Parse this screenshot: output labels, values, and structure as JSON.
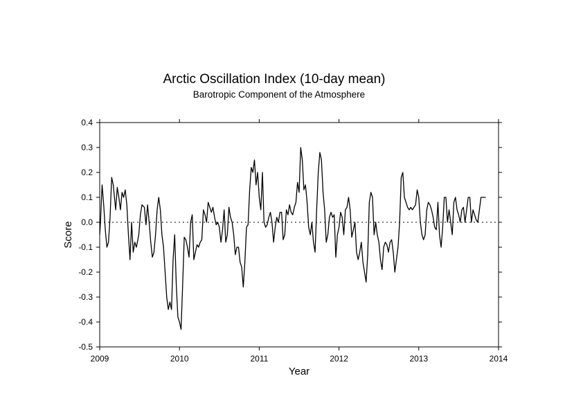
{
  "chart_data": {
    "type": "line",
    "title": "Arctic Oscillation Index (10-day mean)",
    "subtitle": "Barotropic Component of the Atmosphere",
    "xlabel": "Year",
    "ylabel": "Score",
    "xlim": [
      2009,
      2014
    ],
    "ylim": [
      -0.5,
      0.4
    ],
    "x_ticks": [
      2009,
      2010,
      2011,
      2012,
      2013,
      2014
    ],
    "x_tick_labels": [
      "2009",
      "2010",
      "2011",
      "2012",
      "2013",
      "2014"
    ],
    "y_ticks": [
      -0.5,
      -0.4,
      -0.3,
      -0.2,
      -0.1,
      0.0,
      0.1,
      0.2,
      0.3,
      0.4
    ],
    "y_tick_labels": [
      "-0.5",
      "-0.4",
      "-0.3",
      "-0.2",
      "-0.1",
      "0.0",
      "0.1",
      "0.2",
      "0.3",
      "0.4"
    ],
    "zero_line": "dotted",
    "grid": false,
    "line_color": "#000000",
    "series": [
      {
        "x": [
          2009.0,
          2009.01,
          2009.02,
          2009.03,
          2009.05,
          2009.07,
          2009.09,
          2009.11,
          2009.13,
          2009.15,
          2009.17,
          2009.2,
          2009.22,
          2009.24,
          2009.26,
          2009.28,
          2009.3,
          2009.32,
          2009.34,
          2009.36,
          2009.38,
          2009.4,
          2009.42,
          2009.44,
          2009.46,
          2009.49,
          2009.51,
          2009.53,
          2009.56,
          2009.58,
          2009.6,
          2009.62,
          2009.64,
          2009.66,
          2009.68,
          2009.7,
          2009.72,
          2009.74,
          2009.76,
          2009.78,
          2009.8,
          2009.82,
          2009.84,
          2009.86,
          2009.88,
          2009.9,
          2009.92,
          2009.94,
          2009.96,
          2009.98,
          2010.0,
          2010.02,
          2010.04,
          2010.06,
          2010.08,
          2010.1,
          2010.12,
          2010.14,
          2010.16,
          2010.18,
          2010.2,
          2010.22,
          2010.24,
          2010.26,
          2010.28,
          2010.3,
          2010.32,
          2010.34,
          2010.36,
          2010.38,
          2010.4,
          2010.42,
          2010.44,
          2010.46,
          2010.48,
          2010.5,
          2010.52,
          2010.54,
          2010.56,
          2010.58,
          2010.6,
          2010.62,
          2010.64,
          2010.66,
          2010.68,
          2010.7,
          2010.72,
          2010.74,
          2010.76,
          2010.78,
          2010.8,
          2010.82,
          2010.84,
          2010.86,
          2010.88,
          2010.9,
          2010.92,
          2010.94,
          2010.96,
          2010.98,
          2011.0,
          2011.02,
          2011.04,
          2011.06,
          2011.08,
          2011.1,
          2011.12,
          2011.14,
          2011.16,
          2011.18,
          2011.2,
          2011.22,
          2011.24,
          2011.26,
          2011.28,
          2011.3,
          2011.32,
          2011.34,
          2011.36,
          2011.38,
          2011.4,
          2011.42,
          2011.44,
          2011.46,
          2011.48,
          2011.5,
          2011.52,
          2011.54,
          2011.56,
          2011.58,
          2011.6,
          2011.62,
          2011.64,
          2011.66,
          2011.68,
          2011.7,
          2011.72,
          2011.74,
          2011.76,
          2011.78,
          2011.8,
          2011.82,
          2011.84,
          2011.86,
          2011.88,
          2011.9,
          2011.92,
          2011.94,
          2011.96,
          2011.98,
          2012.0,
          2012.02,
          2012.04,
          2012.06,
          2012.08,
          2012.1,
          2012.12,
          2012.14,
          2012.16,
          2012.18,
          2012.2,
          2012.22,
          2012.24,
          2012.26,
          2012.28,
          2012.3,
          2012.32,
          2012.34,
          2012.36,
          2012.38,
          2012.4,
          2012.42,
          2012.44,
          2012.46,
          2012.48,
          2012.5,
          2012.52,
          2012.54,
          2012.56,
          2012.58,
          2012.6,
          2012.62,
          2012.64,
          2012.66,
          2012.68,
          2012.7,
          2012.72,
          2012.74,
          2012.76,
          2012.78,
          2012.8,
          2012.82,
          2012.84,
          2012.86,
          2012.88,
          2012.9,
          2012.92,
          2012.94,
          2012.96,
          2012.98,
          2013.0,
          2013.02,
          2013.04,
          2013.06,
          2013.08,
          2013.1,
          2013.12,
          2013.14,
          2013.16,
          2013.18,
          2013.2,
          2013.22,
          2013.24,
          2013.26,
          2013.28,
          2013.3,
          2013.32,
          2013.34,
          2013.36,
          2013.38,
          2013.4,
          2013.42,
          2013.44,
          2013.46,
          2013.48,
          2013.5,
          2013.52,
          2013.54,
          2013.56,
          2013.58,
          2013.6,
          2013.62,
          2013.64,
          2013.66,
          2013.68,
          2013.7,
          2013.72,
          2013.74,
          2013.76,
          2013.78,
          2013.8,
          2013.82,
          2013.84
        ],
        "values": [
          -0.05,
          0.0,
          0.08,
          0.15,
          0.07,
          -0.03,
          -0.1,
          -0.08,
          0.02,
          0.18,
          0.15,
          0.05,
          0.14,
          0.1,
          0.05,
          0.12,
          0.1,
          0.13,
          0.07,
          -0.05,
          -0.15,
          0.0,
          -0.12,
          -0.08,
          -0.1,
          -0.05,
          0.03,
          0.07,
          0.06,
          -0.01,
          0.07,
          0.0,
          -0.08,
          -0.14,
          -0.12,
          -0.05,
          0.05,
          0.1,
          0.05,
          -0.05,
          -0.1,
          -0.2,
          -0.3,
          -0.35,
          -0.32,
          -0.35,
          -0.15,
          -0.05,
          -0.25,
          -0.38,
          -0.4,
          -0.43,
          -0.25,
          -0.06,
          -0.07,
          -0.1,
          -0.14,
          0.0,
          0.03,
          -0.15,
          -0.12,
          -0.09,
          -0.1,
          -0.08,
          -0.07,
          0.05,
          0.03,
          0.0,
          0.08,
          0.06,
          0.04,
          0.06,
          0.02,
          -0.01,
          0.0,
          -0.02,
          -0.08,
          -0.03,
          0.05,
          -0.08,
          -0.05,
          0.06,
          0.02,
          0.0,
          -0.05,
          -0.13,
          -0.1,
          -0.1,
          -0.16,
          -0.18,
          -0.26,
          -0.16,
          -0.02,
          -0.01,
          0.13,
          0.22,
          0.2,
          0.25,
          0.15,
          0.2,
          0.1,
          0.05,
          0.2,
          0.0,
          -0.02,
          -0.01,
          0.02,
          0.04,
          0.0,
          -0.08,
          -0.02,
          0.02,
          0.0,
          0.04,
          0.04,
          -0.07,
          -0.05,
          0.05,
          0.03,
          0.07,
          0.04,
          0.03,
          0.06,
          0.08,
          0.16,
          0.12,
          0.3,
          0.25,
          0.13,
          0.15,
          0.08,
          -0.02,
          -0.05,
          0.0,
          -0.08,
          -0.12,
          0.05,
          0.2,
          0.28,
          0.25,
          0.12,
          0.05,
          -0.08,
          -0.05,
          0.02,
          0.04,
          0.02,
          0.03,
          -0.14,
          -0.05,
          -0.02,
          0.04,
          0.02,
          -0.05,
          0.05,
          0.06,
          0.1,
          0.05,
          -0.06,
          -0.03,
          0.0,
          -0.12,
          -0.15,
          -0.12,
          -0.08,
          -0.16,
          -0.2,
          -0.24,
          -0.13,
          0.08,
          0.12,
          0.1,
          -0.05,
          0.0,
          -0.05,
          -0.08,
          -0.15,
          -0.19,
          -0.1,
          -0.08,
          -0.09,
          -0.12,
          -0.08,
          -0.07,
          -0.12,
          -0.2,
          -0.15,
          -0.1,
          0.0,
          0.18,
          0.2,
          0.1,
          0.08,
          0.06,
          0.05,
          0.06,
          0.05,
          0.06,
          0.07,
          0.13,
          0.1,
          0.0,
          -0.05,
          -0.07,
          -0.05,
          0.05,
          0.08,
          0.07,
          0.05,
          0.02,
          -0.02,
          -0.03,
          0.08,
          -0.05,
          -0.1,
          -0.02,
          0.1,
          0.1,
          0.0,
          0.05,
          0.0,
          -0.05,
          0.08,
          0.1,
          0.05,
          0.03,
          0.0,
          0.05,
          0.06,
          0.0,
          0.05,
          0.1,
          0.1,
          0.0,
          0.05,
          0.03,
          0.01,
          0.0,
          0.05,
          0.1,
          0.1,
          0.1,
          0.1
        ]
      }
    ]
  }
}
